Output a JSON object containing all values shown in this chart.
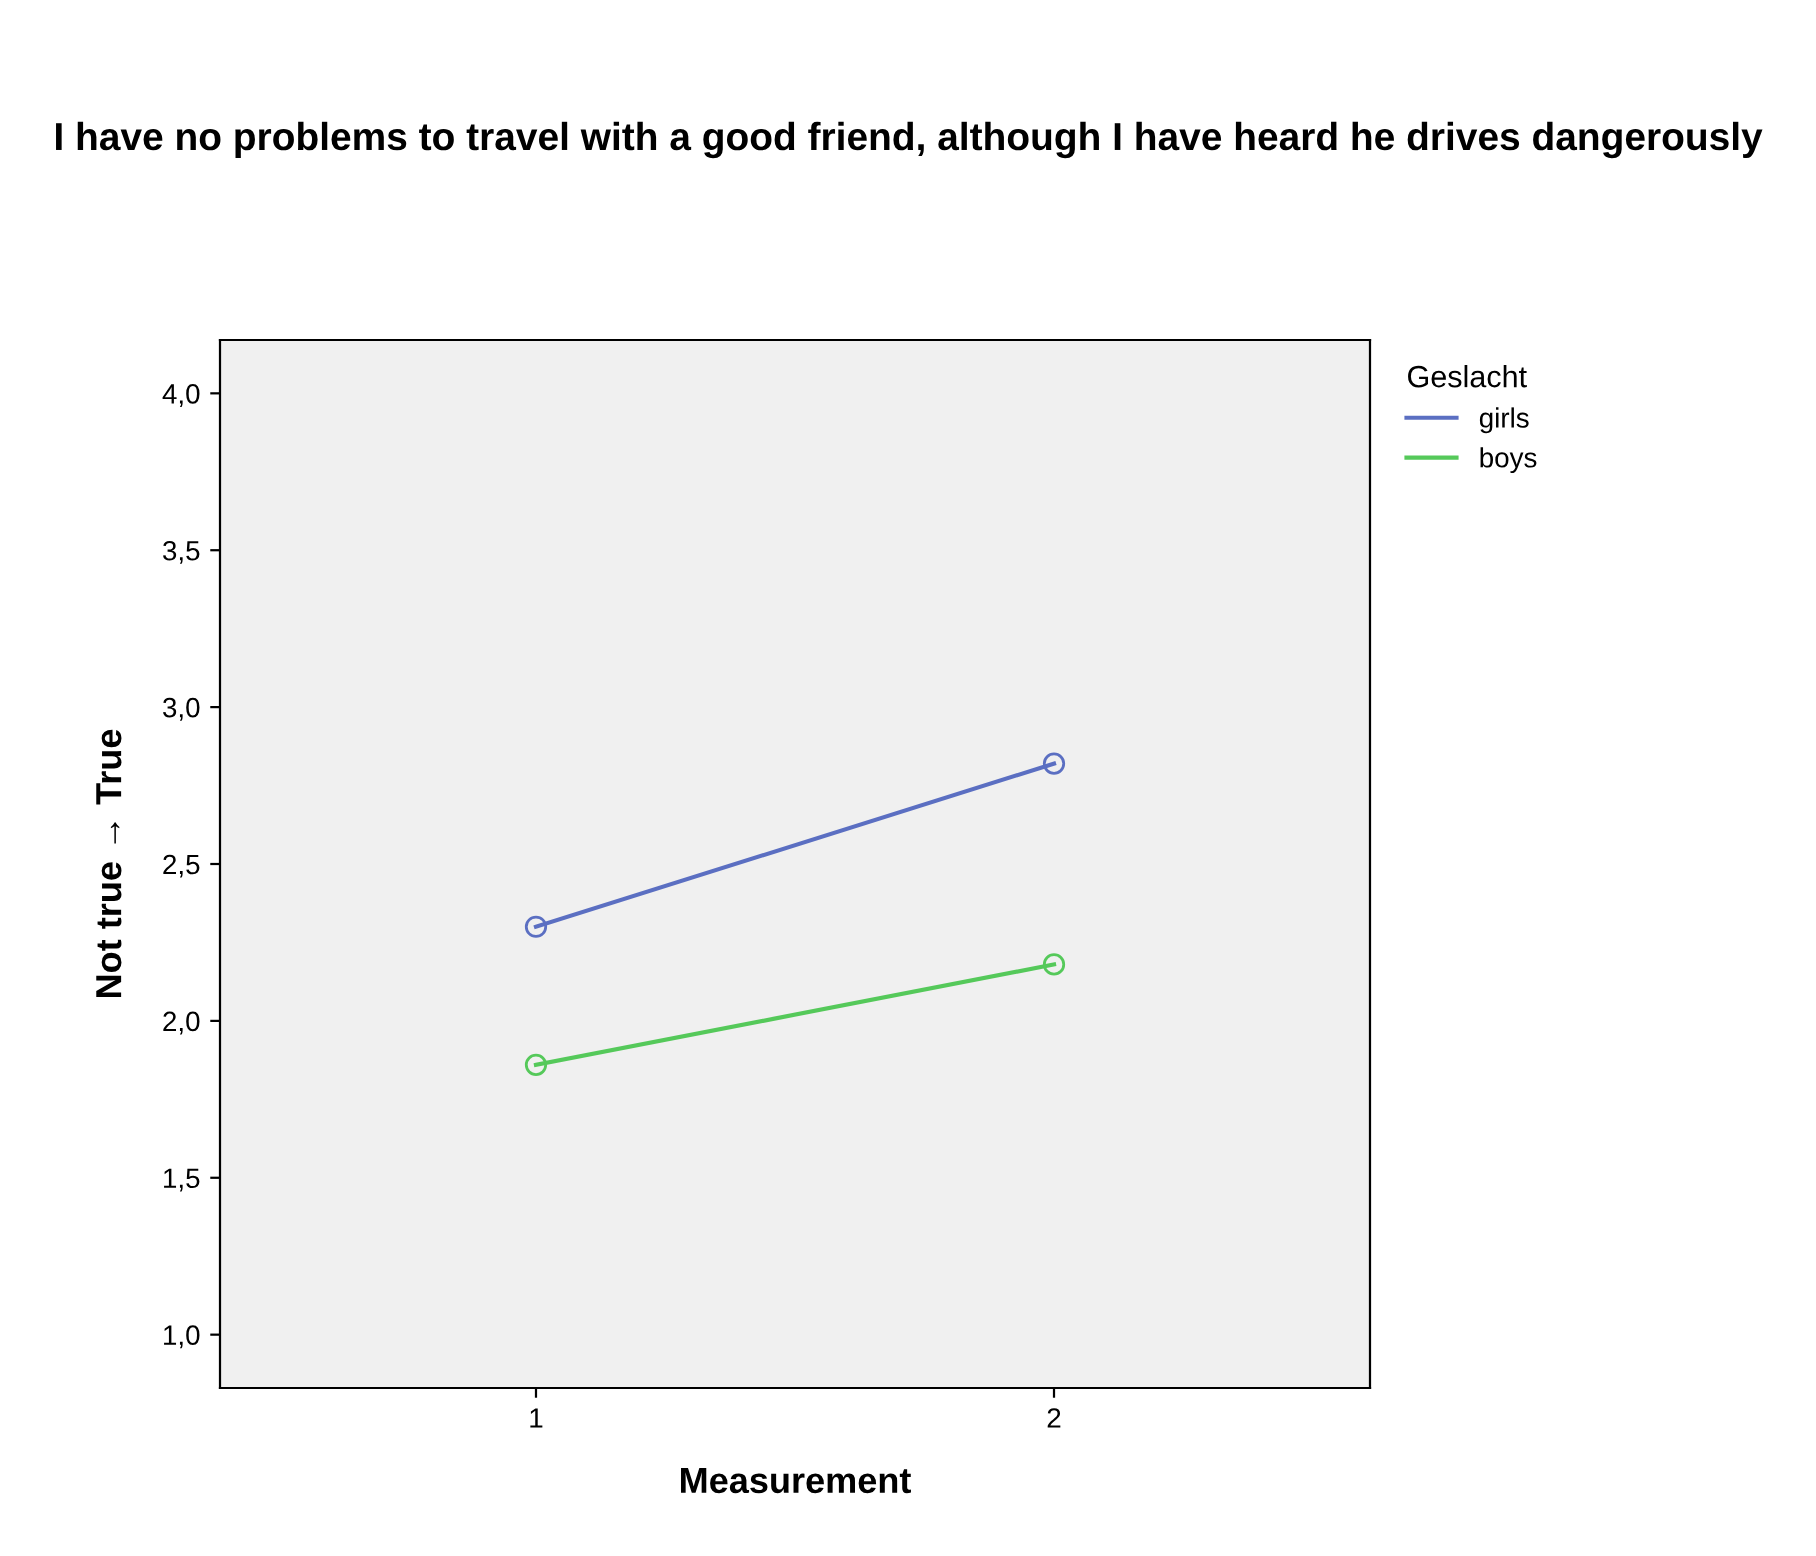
{
  "chart_data": {
    "type": "line",
    "title": "I have no problems to travel with a good friend, although I have heard he drives dangerously",
    "xlabel": "Measurement",
    "ylabel": "Not true → True",
    "legend_title": "Geslacht",
    "categories": [
      "1",
      "2"
    ],
    "series": [
      {
        "name": "girls",
        "color": "#5b6fc2",
        "values": [
          2.3,
          2.82
        ]
      },
      {
        "name": "boys",
        "color": "#55c95a",
        "values": [
          1.86,
          2.18
        ]
      }
    ],
    "ylim": [
      0.83,
      4.17
    ],
    "yticks": [
      {
        "value": 1.0,
        "label": "1,0"
      },
      {
        "value": 1.5,
        "label": "1,5"
      },
      {
        "value": 2.0,
        "label": "2,0"
      },
      {
        "value": 2.5,
        "label": "2,5"
      },
      {
        "value": 3.0,
        "label": "3,0"
      },
      {
        "value": 3.5,
        "label": "3,5"
      },
      {
        "value": 4.0,
        "label": "4,0"
      }
    ],
    "marker": "circle",
    "line_style": "solid",
    "legend": "top right",
    "grid": false
  }
}
